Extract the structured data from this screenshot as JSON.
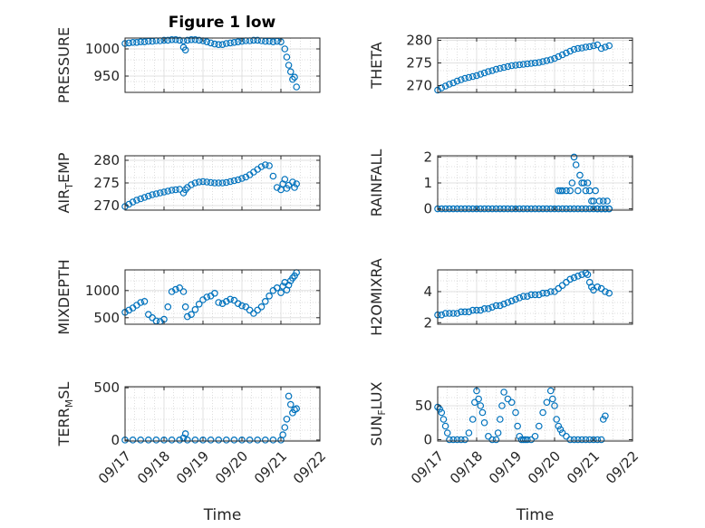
{
  "figure_title": "Figure 1 low",
  "colors": {
    "marker": "#0072BD",
    "axis": "#262626",
    "grid": "#bdbdbd"
  },
  "chart_data": [
    {
      "type": "scatter",
      "ylabel": "PRESSURE",
      "ylabel_parts": [
        {
          "t": "PRESSURE",
          "sub": false
        }
      ],
      "yticks": [
        950,
        1000
      ],
      "ylim": [
        920,
        1020
      ],
      "xlim": [
        0,
        5
      ],
      "xticks": [
        0,
        1,
        2,
        3,
        4,
        5
      ],
      "xticklabels": [],
      "x": [
        0.0,
        0.1,
        0.2,
        0.3,
        0.4,
        0.5,
        0.6,
        0.7,
        0.8,
        0.9,
        1.0,
        1.1,
        1.2,
        1.3,
        1.4,
        1.5,
        1.6,
        1.7,
        1.8,
        1.9,
        2.0,
        2.1,
        2.2,
        2.3,
        2.4,
        2.5,
        2.6,
        2.7,
        2.8,
        2.9,
        3.0,
        3.1,
        3.2,
        3.3,
        3.4,
        3.5,
        3.6,
        3.7,
        3.8,
        3.9,
        4.0,
        4.1,
        4.15,
        4.2,
        4.25,
        4.3,
        4.35,
        4.4,
        1.5,
        1.55
      ],
      "y": [
        1010,
        1011,
        1012,
        1012,
        1013,
        1013,
        1014,
        1014,
        1015,
        1015,
        1016,
        1016,
        1017,
        1017,
        1016,
        1015,
        1016,
        1017,
        1017,
        1016,
        1015,
        1013,
        1011,
        1009,
        1008,
        1008,
        1010,
        1011,
        1012,
        1013,
        1014,
        1015,
        1015,
        1016,
        1016,
        1015,
        1014,
        1014,
        1013,
        1014,
        1013,
        1000,
        985,
        970,
        958,
        944,
        948,
        930,
        1003,
        998
      ]
    },
    {
      "type": "scatter",
      "ylabel": "THETA",
      "ylabel_parts": [
        {
          "t": "THETA",
          "sub": false
        }
      ],
      "yticks": [
        270,
        275,
        280
      ],
      "ylim": [
        268.5,
        280.5
      ],
      "xlim": [
        0,
        5
      ],
      "xticks": [
        0,
        1,
        2,
        3,
        4,
        5
      ],
      "xticklabels": [],
      "x": [
        0.0,
        0.1,
        0.2,
        0.3,
        0.4,
        0.5,
        0.6,
        0.7,
        0.8,
        0.9,
        1.0,
        1.1,
        1.2,
        1.3,
        1.4,
        1.5,
        1.6,
        1.7,
        1.8,
        1.9,
        2.0,
        2.1,
        2.2,
        2.3,
        2.4,
        2.5,
        2.6,
        2.7,
        2.8,
        2.9,
        3.0,
        3.1,
        3.2,
        3.3,
        3.4,
        3.5,
        3.6,
        3.7,
        3.8,
        3.9,
        4.0,
        4.1,
        4.2,
        4.3,
        4.4
      ],
      "y": [
        269.0,
        269.5,
        269.9,
        270.3,
        270.6,
        271.0,
        271.3,
        271.6,
        271.8,
        272.0,
        272.2,
        272.5,
        272.8,
        273.1,
        273.3,
        273.6,
        273.8,
        274.0,
        274.2,
        274.4,
        274.5,
        274.6,
        274.7,
        274.8,
        274.9,
        275.0,
        275.1,
        275.3,
        275.5,
        275.7,
        276.0,
        276.4,
        276.8,
        277.2,
        277.6,
        278.0,
        278.2,
        278.3,
        278.5,
        278.6,
        278.8,
        279.0,
        278.2,
        278.5,
        278.8
      ]
    },
    {
      "type": "scatter",
      "ylabel": "AIR_TEMP",
      "ylabel_parts": [
        {
          "t": "AIR",
          "sub": false
        },
        {
          "t": "T",
          "sub": true
        },
        {
          "t": "EMP",
          "sub": false
        }
      ],
      "yticks": [
        270,
        275,
        280
      ],
      "ylim": [
        269,
        281
      ],
      "xlim": [
        0,
        5
      ],
      "xticks": [
        0,
        1,
        2,
        3,
        4,
        5
      ],
      "xticklabels": [],
      "x": [
        0.0,
        0.1,
        0.2,
        0.3,
        0.4,
        0.5,
        0.6,
        0.7,
        0.8,
        0.9,
        1.0,
        1.1,
        1.2,
        1.3,
        1.4,
        1.5,
        1.55,
        1.6,
        1.7,
        1.8,
        1.9,
        2.0,
        2.1,
        2.2,
        2.3,
        2.4,
        2.5,
        2.6,
        2.7,
        2.8,
        2.9,
        3.0,
        3.1,
        3.2,
        3.3,
        3.4,
        3.5,
        3.6,
        3.7,
        3.8,
        3.9,
        4.0,
        4.05,
        4.1,
        4.15,
        4.2,
        4.3,
        4.35,
        4.4
      ],
      "y": [
        269.8,
        270.3,
        270.8,
        271.2,
        271.5,
        271.8,
        272.1,
        272.4,
        272.6,
        272.8,
        273.0,
        273.2,
        273.4,
        273.5,
        273.6,
        272.8,
        273.5,
        274.0,
        274.6,
        275.0,
        275.2,
        275.3,
        275.2,
        275.1,
        275.0,
        275.0,
        275.0,
        275.1,
        275.3,
        275.5,
        275.7,
        276.0,
        276.3,
        276.8,
        277.4,
        278.0,
        278.6,
        279.0,
        278.8,
        276.5,
        274.0,
        273.5,
        274.8,
        275.8,
        273.8,
        274.5,
        275.2,
        274.0,
        274.8
      ]
    },
    {
      "type": "scatter",
      "ylabel": "RAINFALL",
      "ylabel_parts": [
        {
          "t": "RAINFALL",
          "sub": false
        }
      ],
      "yticks": [
        0,
        1,
        2
      ],
      "ylim": [
        -0.05,
        2.05
      ],
      "xlim": [
        0,
        5
      ],
      "xticks": [
        0,
        1,
        2,
        3,
        4,
        5
      ],
      "xticklabels": [],
      "x": [
        0.0,
        0.1,
        0.2,
        0.3,
        0.4,
        0.5,
        0.6,
        0.7,
        0.8,
        0.9,
        1.0,
        1.1,
        1.2,
        1.3,
        1.4,
        1.5,
        1.6,
        1.7,
        1.8,
        1.9,
        2.0,
        2.1,
        2.2,
        2.3,
        2.4,
        2.5,
        2.6,
        2.7,
        2.8,
        2.9,
        3.0,
        3.1,
        3.15,
        3.2,
        3.3,
        3.4,
        3.45,
        3.5,
        3.55,
        3.6,
        3.65,
        3.7,
        3.75,
        3.8,
        3.85,
        3.9,
        3.95,
        4.0,
        4.05,
        4.1,
        4.15,
        4.2,
        4.25,
        4.3,
        4.35,
        4.4,
        3.1,
        3.2,
        3.3,
        3.4,
        3.5,
        3.6,
        3.7,
        3.8,
        3.9,
        4.0,
        4.1,
        4.2,
        4.3,
        4.4
      ],
      "y": [
        0,
        0,
        0,
        0,
        0,
        0,
        0,
        0,
        0,
        0,
        0,
        0,
        0,
        0,
        0,
        0,
        0,
        0,
        0,
        0,
        0,
        0,
        0,
        0,
        0,
        0,
        0,
        0,
        0,
        0,
        0,
        0.7,
        0.7,
        0.7,
        0.7,
        0.7,
        1.0,
        2.0,
        1.7,
        0.7,
        1.3,
        1.0,
        1.0,
        0.7,
        1.0,
        0.7,
        0.3,
        0.3,
        0.7,
        0,
        0.3,
        0,
        0.3,
        0,
        0.3,
        0,
        0,
        0,
        0,
        0,
        0,
        0,
        0,
        0,
        0,
        0,
        0,
        0,
        0,
        0
      ]
    },
    {
      "type": "scatter",
      "ylabel": "MIXDEPTH",
      "ylabel_parts": [
        {
          "t": "MIXDEPTH",
          "sub": false
        }
      ],
      "yticks": [
        500,
        1000
      ],
      "ylim": [
        380,
        1380
      ],
      "xlim": [
        0,
        5
      ],
      "xticks": [
        0,
        1,
        2,
        3,
        4,
        5
      ],
      "xticklabels": [],
      "x": [
        0.0,
        0.1,
        0.2,
        0.3,
        0.4,
        0.5,
        0.6,
        0.7,
        0.8,
        0.9,
        1.0,
        1.1,
        1.2,
        1.3,
        1.4,
        1.5,
        1.55,
        1.6,
        1.7,
        1.8,
        1.9,
        2.0,
        2.1,
        2.2,
        2.3,
        2.4,
        2.5,
        2.6,
        2.7,
        2.8,
        2.9,
        3.0,
        3.1,
        3.2,
        3.3,
        3.4,
        3.5,
        3.6,
        3.7,
        3.8,
        3.9,
        4.0,
        4.05,
        4.1,
        4.15,
        4.2,
        4.25,
        4.3,
        4.35,
        4.4
      ],
      "y": [
        600,
        640,
        680,
        730,
        780,
        800,
        560,
        500,
        440,
        430,
        470,
        700,
        980,
        1020,
        1050,
        980,
        700,
        520,
        560,
        650,
        750,
        830,
        880,
        900,
        950,
        780,
        760,
        800,
        840,
        820,
        760,
        720,
        700,
        640,
        580,
        640,
        700,
        800,
        900,
        1000,
        1050,
        960,
        1080,
        1150,
        1010,
        1100,
        1180,
        1230,
        1270,
        1330
      ]
    },
    {
      "type": "scatter",
      "ylabel": "H2OMIXRA",
      "ylabel_parts": [
        {
          "t": "H2OMIXRA",
          "sub": false
        }
      ],
      "yticks": [
        2,
        4
      ],
      "ylim": [
        1.9,
        5.4
      ],
      "xlim": [
        0,
        5
      ],
      "xticks": [
        0,
        1,
        2,
        3,
        4,
        5
      ],
      "xticklabels": [],
      "x": [
        0.0,
        0.1,
        0.2,
        0.3,
        0.4,
        0.5,
        0.6,
        0.7,
        0.8,
        0.9,
        1.0,
        1.1,
        1.2,
        1.3,
        1.4,
        1.5,
        1.6,
        1.7,
        1.8,
        1.9,
        2.0,
        2.1,
        2.2,
        2.3,
        2.4,
        2.5,
        2.6,
        2.7,
        2.8,
        2.9,
        3.0,
        3.1,
        3.2,
        3.3,
        3.4,
        3.5,
        3.6,
        3.7,
        3.8,
        3.85,
        3.9,
        3.95,
        4.0,
        4.1,
        4.2,
        4.3,
        4.4
      ],
      "y": [
        2.5,
        2.5,
        2.6,
        2.6,
        2.6,
        2.6,
        2.7,
        2.7,
        2.7,
        2.8,
        2.8,
        2.8,
        2.9,
        2.9,
        3.0,
        3.1,
        3.1,
        3.2,
        3.3,
        3.4,
        3.5,
        3.6,
        3.7,
        3.7,
        3.8,
        3.8,
        3.8,
        3.9,
        3.9,
        4.0,
        4.0,
        4.2,
        4.4,
        4.6,
        4.8,
        4.9,
        5.0,
        5.1,
        5.2,
        5.1,
        4.6,
        4.3,
        4.1,
        4.3,
        4.2,
        4.0,
        3.9
      ]
    },
    {
      "type": "scatter",
      "ylabel": "TERR_MSL",
      "ylabel_parts": [
        {
          "t": "TERR",
          "sub": false
        },
        {
          "t": "M",
          "sub": true
        },
        {
          "t": "SL",
          "sub": false
        }
      ],
      "yticks": [
        0,
        500
      ],
      "ylim": [
        -10,
        510
      ],
      "xlim": [
        0,
        5
      ],
      "xticks": [
        0,
        1,
        2,
        3,
        4,
        5
      ],
      "xticklabels": [
        "09/17",
        "09/18",
        "09/19",
        "09/20",
        "09/21",
        "09/22"
      ],
      "xlabel": "Time",
      "x": [
        0.0,
        0.2,
        0.4,
        0.6,
        0.8,
        1.0,
        1.2,
        1.4,
        1.5,
        1.55,
        1.6,
        1.8,
        2.0,
        2.2,
        2.4,
        2.6,
        2.8,
        3.0,
        3.2,
        3.4,
        3.6,
        3.8,
        4.0,
        4.05,
        4.1,
        4.15,
        4.2,
        4.25,
        4.3,
        4.35,
        4.4
      ],
      "y": [
        0,
        0,
        0,
        0,
        0,
        0,
        0,
        0,
        20,
        60,
        0,
        0,
        0,
        0,
        0,
        0,
        0,
        0,
        0,
        0,
        0,
        0,
        0,
        50,
        120,
        200,
        420,
        340,
        260,
        290,
        300
      ]
    },
    {
      "type": "scatter",
      "ylabel": "SUN_FLUX",
      "ylabel_parts": [
        {
          "t": "SUN",
          "sub": false
        },
        {
          "t": "F",
          "sub": true
        },
        {
          "t": "LUX",
          "sub": false
        }
      ],
      "yticks": [
        0,
        50
      ],
      "ylim": [
        -2,
        78
      ],
      "xlim": [
        0,
        5
      ],
      "xticks": [
        0,
        1,
        2,
        3,
        4,
        5
      ],
      "xticklabels": [
        "09/17",
        "09/18",
        "09/19",
        "09/20",
        "09/21",
        "09/22"
      ],
      "xlabel": "Time",
      "x": [
        0.0,
        0.05,
        0.1,
        0.15,
        0.2,
        0.25,
        0.3,
        0.4,
        0.5,
        0.6,
        0.7,
        0.8,
        0.9,
        0.95,
        1.0,
        1.05,
        1.1,
        1.15,
        1.2,
        1.3,
        1.4,
        1.5,
        1.55,
        1.6,
        1.65,
        1.7,
        1.8,
        1.9,
        2.0,
        2.05,
        2.1,
        2.15,
        2.2,
        2.25,
        2.3,
        2.4,
        2.5,
        2.6,
        2.7,
        2.8,
        2.9,
        2.95,
        3.0,
        3.05,
        3.1,
        3.15,
        3.2,
        3.3,
        3.4,
        3.5,
        3.6,
        3.7,
        3.8,
        3.9,
        4.0,
        4.1,
        4.2,
        4.25,
        4.3
      ],
      "y": [
        48,
        45,
        40,
        30,
        20,
        10,
        0,
        0,
        0,
        0,
        0,
        10,
        30,
        55,
        72,
        60,
        50,
        40,
        25,
        5,
        0,
        0,
        10,
        30,
        50,
        70,
        60,
        55,
        40,
        20,
        5,
        0,
        0,
        0,
        0,
        0,
        5,
        20,
        40,
        55,
        72,
        60,
        50,
        30,
        20,
        15,
        10,
        5,
        0,
        0,
        0,
        0,
        0,
        0,
        0,
        0,
        0,
        30,
        35
      ]
    }
  ]
}
